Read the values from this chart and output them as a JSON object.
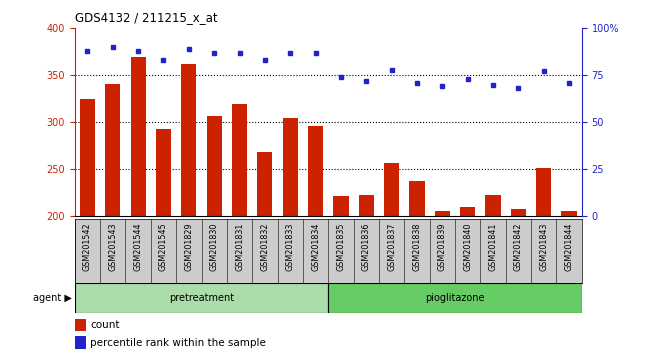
{
  "title": "GDS4132 / 211215_x_at",
  "categories": [
    "GSM201542",
    "GSM201543",
    "GSM201544",
    "GSM201545",
    "GSM201829",
    "GSM201830",
    "GSM201831",
    "GSM201832",
    "GSM201833",
    "GSM201834",
    "GSM201835",
    "GSM201836",
    "GSM201837",
    "GSM201838",
    "GSM201839",
    "GSM201840",
    "GSM201841",
    "GSM201842",
    "GSM201843",
    "GSM201844"
  ],
  "bar_values": [
    325,
    341,
    369,
    293,
    362,
    307,
    319,
    268,
    304,
    296,
    221,
    222,
    256,
    237,
    205,
    210,
    222,
    207,
    251,
    205
  ],
  "dot_values": [
    88,
    90,
    88,
    83,
    89,
    87,
    87,
    83,
    87,
    87,
    74,
    72,
    78,
    71,
    69,
    73,
    70,
    68,
    77,
    71
  ],
  "bar_color": "#cc2200",
  "dot_color": "#2222cc",
  "ylim_left": [
    200,
    400
  ],
  "ylim_right": [
    0,
    100
  ],
  "yticks_left": [
    200,
    250,
    300,
    350,
    400
  ],
  "yticks_right": [
    0,
    25,
    50,
    75,
    100
  ],
  "grid_values": [
    250,
    300,
    350
  ],
  "agent_label": "agent",
  "legend_bar": "count",
  "legend_dot": "percentile rank within the sample",
  "bar_width": 0.6,
  "pretreatment_label": "pretreatment",
  "pioglitazone_label": "pioglitazone",
  "n_pretreatment": 10,
  "n_pioglitazone": 10,
  "label_bg_color": "#cccccc",
  "pre_color": "#aaddaa",
  "pio_color": "#66cc66"
}
